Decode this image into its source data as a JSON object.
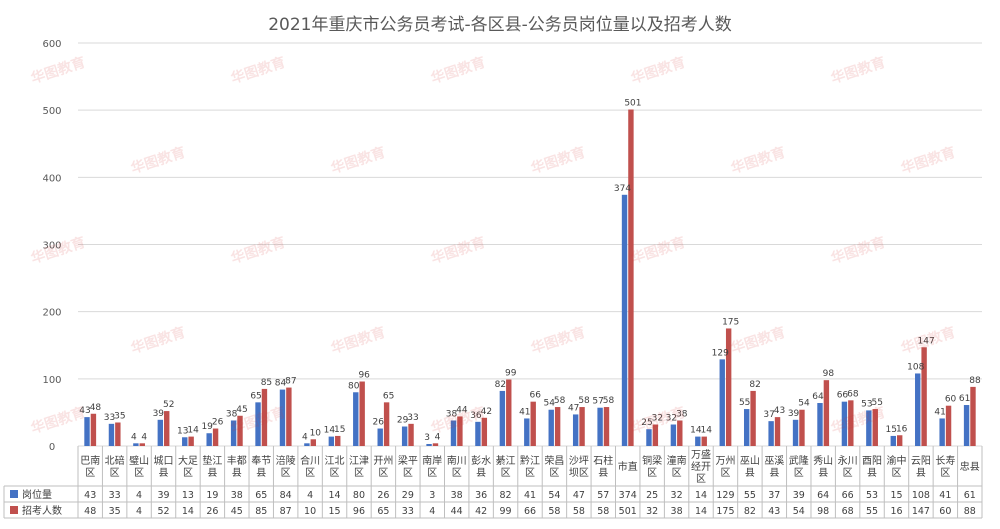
{
  "watermark_text": "华图教育",
  "chart_data": {
    "type": "bar",
    "title": "2021年重庆市公务员考试-各区县-公务员岗位量以及招考人数",
    "ylim": [
      0,
      600
    ],
    "yticks": [
      0,
      100,
      200,
      300,
      400,
      500,
      600
    ],
    "grid": true,
    "legend_placement": "data-table-left",
    "categories": [
      "巴南区",
      "北碚区",
      "璧山区",
      "城口县",
      "大足区",
      "垫江县",
      "丰都县",
      "奉节县",
      "涪陵区",
      "合川区",
      "江北区",
      "江津区",
      "开州区",
      "梁平区",
      "南岸区",
      "南川区",
      "彭水县",
      "綦江区",
      "黔江区",
      "荣昌区",
      "沙坪坝区",
      "石柱县",
      "市直",
      "铜梁区",
      "潼南区",
      "万盛经开区",
      "万州区",
      "巫山县",
      "巫溪县",
      "武隆区",
      "秀山县",
      "永川区",
      "酉阳县",
      "渝中区",
      "云阳县",
      "长寿区",
      "忠县"
    ],
    "series": [
      {
        "name": "岗位量",
        "color": "#4472C4",
        "values": [
          43,
          33,
          4,
          39,
          13,
          19,
          38,
          65,
          84,
          4,
          14,
          80,
          26,
          29,
          3,
          38,
          36,
          82,
          41,
          54,
          47,
          57,
          374,
          25,
          32,
          14,
          129,
          55,
          37,
          39,
          64,
          66,
          53,
          15,
          108,
          41,
          61
        ]
      },
      {
        "name": "招考人数",
        "color": "#C0504D",
        "values": [
          48,
          35,
          4,
          52,
          14,
          26,
          45,
          85,
          87,
          10,
          15,
          96,
          65,
          33,
          4,
          44,
          42,
          99,
          66,
          58,
          58,
          58,
          501,
          32,
          38,
          14,
          175,
          82,
          43,
          54,
          98,
          68,
          55,
          16,
          147,
          60,
          88
        ]
      }
    ]
  }
}
